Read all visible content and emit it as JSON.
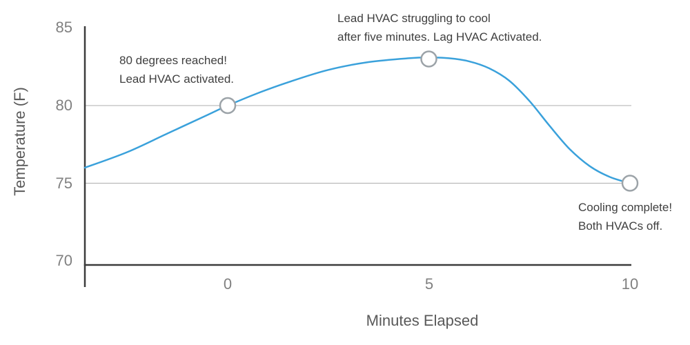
{
  "chart_data": {
    "type": "line",
    "title": "",
    "xlabel": "Minutes Elapsed",
    "ylabel": "Temperature (F)",
    "x_ticks": [
      0,
      5,
      10
    ],
    "y_ticks": [
      85,
      80,
      75,
      70
    ],
    "x_tick_labels": [
      "0",
      "5",
      "10"
    ],
    "y_tick_labels": [
      "85",
      "80",
      "75",
      "70"
    ],
    "xlim": [
      -3.55,
      10
    ],
    "ylim": [
      70,
      85
    ],
    "y_gridlines": [
      80,
      75
    ],
    "grid": "horizontal-only",
    "legend_position": "none",
    "series": [
      {
        "name": "Temperature",
        "points": [
          [
            -3.55,
            76
          ],
          [
            -2.5,
            77
          ],
          [
            -1.5,
            78.2
          ],
          [
            -0.5,
            79.4
          ],
          [
            0,
            80
          ],
          [
            0.75,
            80.8
          ],
          [
            1.5,
            81.5
          ],
          [
            2.5,
            82.3
          ],
          [
            3.5,
            82.8
          ],
          [
            4.5,
            83.05
          ],
          [
            5,
            83.1
          ],
          [
            5.5,
            83.05
          ],
          [
            6,
            82.85
          ],
          [
            6.5,
            82.4
          ],
          [
            7,
            81.6
          ],
          [
            7.5,
            80.3
          ],
          [
            8,
            78.7
          ],
          [
            8.5,
            77.2
          ],
          [
            9,
            76.1
          ],
          [
            9.5,
            75.4
          ],
          [
            10,
            75
          ]
        ]
      }
    ],
    "markers": [
      {
        "x": 0,
        "y": 80,
        "label": "80 degrees reached! Lead HVAC activated."
      },
      {
        "x": 5,
        "y": 83,
        "label": "Lead HVAC struggling to cool after five minutes. Lag HVAC Activated."
      },
      {
        "x": 10,
        "y": 75,
        "label": "Cooling complete! Both HVACs off."
      }
    ],
    "annotations": [
      {
        "lines": [
          "80 degrees reached!",
          "Lead HVAC activated."
        ]
      },
      {
        "lines": [
          "Lead HVAC struggling to cool",
          "after five minutes. Lag HVAC Activated."
        ]
      },
      {
        "lines": [
          "Cooling complete!",
          "Both HVACs off."
        ]
      }
    ],
    "colors": {
      "line": "#3AA1DB",
      "marker_stroke": "#9CA3A8",
      "marker_fill": "#FFFFFF",
      "axis": "#3B3B3B",
      "grid": "#ADADAD",
      "tick_text": "#808080",
      "axis_title_text": "#595959",
      "annotation_text": "#3F3F3F"
    }
  }
}
